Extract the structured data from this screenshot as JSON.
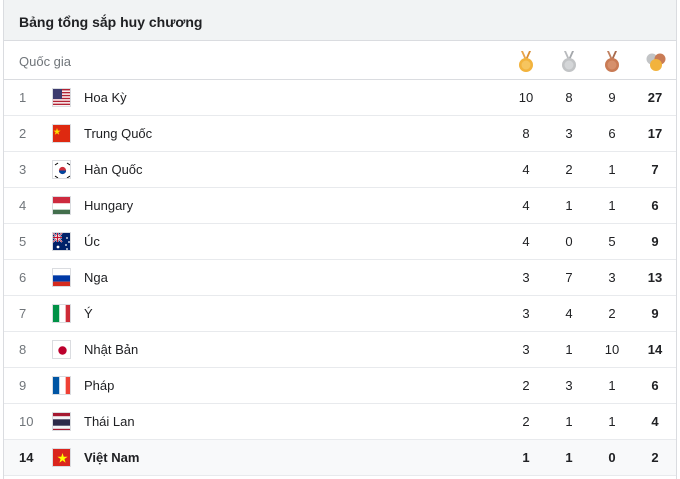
{
  "title": "Bảng tổng sắp huy chương",
  "header": {
    "country_label": "Quốc gia",
    "gold_icon": "gold-medal-icon",
    "silver_icon": "silver-medal-icon",
    "bronze_icon": "bronze-medal-icon",
    "total_icon": "total-medals-icon"
  },
  "colors": {
    "gold": "#f2b33d",
    "silver": "#c2c4c6",
    "bronze": "#c97b55",
    "ribbon": "#e8a44a"
  },
  "rows": [
    {
      "rank": "1",
      "country": "Hoa Kỳ",
      "flag": "us-flag-icon",
      "gold": "10",
      "silver": "8",
      "bronze": "9",
      "total": "27"
    },
    {
      "rank": "2",
      "country": "Trung Quốc",
      "flag": "china-flag-icon",
      "gold": "8",
      "silver": "3",
      "bronze": "6",
      "total": "17"
    },
    {
      "rank": "3",
      "country": "Hàn Quốc",
      "flag": "south-korea-flag-icon",
      "gold": "4",
      "silver": "2",
      "bronze": "1",
      "total": "7"
    },
    {
      "rank": "4",
      "country": "Hungary",
      "flag": "hungary-flag-icon",
      "gold": "4",
      "silver": "1",
      "bronze": "1",
      "total": "6"
    },
    {
      "rank": "5",
      "country": "Úc",
      "flag": "australia-flag-icon",
      "gold": "4",
      "silver": "0",
      "bronze": "5",
      "total": "9"
    },
    {
      "rank": "6",
      "country": "Nga",
      "flag": "russia-flag-icon",
      "gold": "3",
      "silver": "7",
      "bronze": "3",
      "total": "13"
    },
    {
      "rank": "7",
      "country": "Ý",
      "flag": "italy-flag-icon",
      "gold": "3",
      "silver": "4",
      "bronze": "2",
      "total": "9"
    },
    {
      "rank": "8",
      "country": "Nhật Bản",
      "flag": "japan-flag-icon",
      "gold": "3",
      "silver": "1",
      "bronze": "10",
      "total": "14"
    },
    {
      "rank": "9",
      "country": "Pháp",
      "flag": "france-flag-icon",
      "gold": "2",
      "silver": "3",
      "bronze": "1",
      "total": "6"
    },
    {
      "rank": "10",
      "country": "Thái Lan",
      "flag": "thailand-flag-icon",
      "gold": "2",
      "silver": "1",
      "bronze": "1",
      "total": "4"
    },
    {
      "rank": "14",
      "country": "Việt Nam",
      "flag": "vietnam-flag-icon",
      "gold": "1",
      "silver": "1",
      "bronze": "0",
      "total": "2"
    }
  ]
}
